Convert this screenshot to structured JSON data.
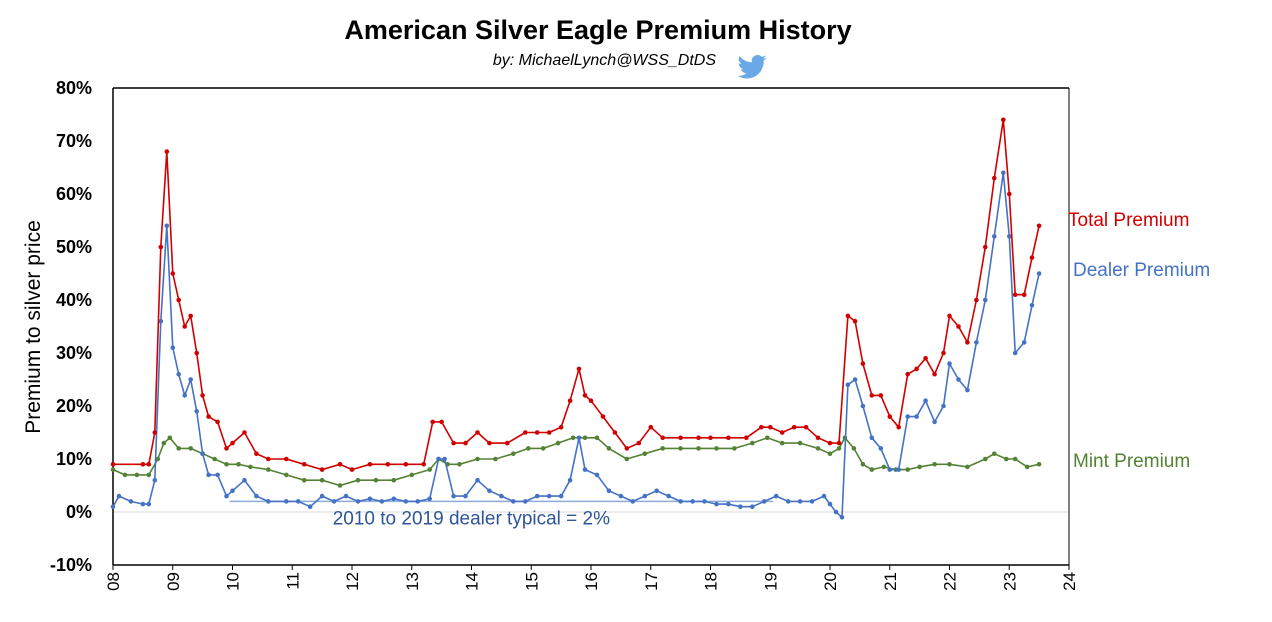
{
  "chart_data": {
    "type": "line",
    "title": "American Silver Eagle Premium History",
    "subtitle": "by: MichaelLynch@WSS_DtDS",
    "subtitle_icon": "twitter-bird-icon",
    "ylabel": "Premium to silver price",
    "xlabel": "",
    "xlim": [
      2008,
      2024
    ],
    "ylim": [
      -10,
      80
    ],
    "x_ticks": [
      "08",
      "09",
      "10",
      "11",
      "12",
      "13",
      "14",
      "15",
      "16",
      "17",
      "18",
      "19",
      "20",
      "21",
      "22",
      "23",
      "24"
    ],
    "y_ticks": [
      "80%",
      "70%",
      "60%",
      "50%",
      "40%",
      "30%",
      "20%",
      "10%",
      "0%",
      "-10%"
    ],
    "grid": "horizontal at 0%",
    "colors": {
      "total": "#d10000",
      "dealer": "#4472c4",
      "mint": "#548235",
      "annotation_line": "#8eaadb"
    },
    "series": [
      {
        "name": "Total Premium",
        "color": "#d10000",
        "points": [
          [
            2008.0,
            9
          ],
          [
            2008.5,
            9
          ],
          [
            2008.6,
            9
          ],
          [
            2008.7,
            15
          ],
          [
            2008.8,
            50
          ],
          [
            2008.9,
            68
          ],
          [
            2009.0,
            45
          ],
          [
            2009.1,
            40
          ],
          [
            2009.2,
            35
          ],
          [
            2009.3,
            37
          ],
          [
            2009.4,
            30
          ],
          [
            2009.5,
            22
          ],
          [
            2009.6,
            18
          ],
          [
            2009.75,
            17
          ],
          [
            2009.9,
            12
          ],
          [
            2010.0,
            13
          ],
          [
            2010.2,
            15
          ],
          [
            2010.4,
            11
          ],
          [
            2010.6,
            10
          ],
          [
            2010.9,
            10
          ],
          [
            2011.2,
            9
          ],
          [
            2011.5,
            8
          ],
          [
            2011.8,
            9
          ],
          [
            2012.0,
            8
          ],
          [
            2012.3,
            9
          ],
          [
            2012.6,
            9
          ],
          [
            2012.9,
            9
          ],
          [
            2013.2,
            9
          ],
          [
            2013.35,
            17
          ],
          [
            2013.5,
            17
          ],
          [
            2013.7,
            13
          ],
          [
            2013.9,
            13
          ],
          [
            2014.1,
            15
          ],
          [
            2014.3,
            13
          ],
          [
            2014.6,
            13
          ],
          [
            2014.9,
            15
          ],
          [
            2015.1,
            15
          ],
          [
            2015.3,
            15
          ],
          [
            2015.5,
            16
          ],
          [
            2015.65,
            21
          ],
          [
            2015.8,
            27
          ],
          [
            2015.9,
            22
          ],
          [
            2016.0,
            21
          ],
          [
            2016.2,
            18
          ],
          [
            2016.4,
            15
          ],
          [
            2016.6,
            12
          ],
          [
            2016.8,
            13
          ],
          [
            2017.0,
            16
          ],
          [
            2017.2,
            14
          ],
          [
            2017.5,
            14
          ],
          [
            2017.8,
            14
          ],
          [
            2018.0,
            14
          ],
          [
            2018.3,
            14
          ],
          [
            2018.6,
            14
          ],
          [
            2018.85,
            16
          ],
          [
            2019.0,
            16
          ],
          [
            2019.2,
            15
          ],
          [
            2019.4,
            16
          ],
          [
            2019.6,
            16
          ],
          [
            2019.8,
            14
          ],
          [
            2020.0,
            13
          ],
          [
            2020.15,
            13
          ],
          [
            2020.3,
            37
          ],
          [
            2020.42,
            36
          ],
          [
            2020.55,
            28
          ],
          [
            2020.7,
            22
          ],
          [
            2020.85,
            22
          ],
          [
            2021.0,
            18
          ],
          [
            2021.15,
            16
          ],
          [
            2021.3,
            26
          ],
          [
            2021.45,
            27
          ],
          [
            2021.6,
            29
          ],
          [
            2021.75,
            26
          ],
          [
            2021.9,
            30
          ],
          [
            2022.0,
            37
          ],
          [
            2022.15,
            35
          ],
          [
            2022.3,
            32
          ],
          [
            2022.45,
            40
          ],
          [
            2022.6,
            50
          ],
          [
            2022.75,
            63
          ],
          [
            2022.9,
            74
          ],
          [
            2023.0,
            60
          ],
          [
            2023.1,
            41
          ],
          [
            2023.25,
            41
          ],
          [
            2023.38,
            48
          ],
          [
            2023.5,
            54
          ]
        ]
      },
      {
        "name": "Dealer Premium",
        "color": "#4472c4",
        "points": [
          [
            2008.0,
            1
          ],
          [
            2008.1,
            3
          ],
          [
            2008.3,
            2
          ],
          [
            2008.5,
            1.5
          ],
          [
            2008.6,
            1.5
          ],
          [
            2008.7,
            6
          ],
          [
            2008.8,
            36
          ],
          [
            2008.9,
            54
          ],
          [
            2009.0,
            31
          ],
          [
            2009.1,
            26
          ],
          [
            2009.2,
            22
          ],
          [
            2009.3,
            25
          ],
          [
            2009.4,
            19
          ],
          [
            2009.5,
            11
          ],
          [
            2009.6,
            7
          ],
          [
            2009.75,
            7
          ],
          [
            2009.9,
            3
          ],
          [
            2010.0,
            4
          ],
          [
            2010.2,
            6
          ],
          [
            2010.4,
            3
          ],
          [
            2010.6,
            2
          ],
          [
            2010.9,
            2
          ],
          [
            2011.1,
            2
          ],
          [
            2011.3,
            1
          ],
          [
            2011.5,
            3
          ],
          [
            2011.7,
            2
          ],
          [
            2011.9,
            3
          ],
          [
            2012.1,
            2
          ],
          [
            2012.3,
            2.5
          ],
          [
            2012.5,
            2
          ],
          [
            2012.7,
            2.5
          ],
          [
            2012.9,
            2
          ],
          [
            2013.1,
            2
          ],
          [
            2013.3,
            2.5
          ],
          [
            2013.45,
            10
          ],
          [
            2013.55,
            10
          ],
          [
            2013.7,
            3
          ],
          [
            2013.9,
            3
          ],
          [
            2014.1,
            6
          ],
          [
            2014.3,
            4
          ],
          [
            2014.5,
            3
          ],
          [
            2014.7,
            2
          ],
          [
            2014.9,
            2
          ],
          [
            2015.1,
            3
          ],
          [
            2015.3,
            3
          ],
          [
            2015.5,
            3
          ],
          [
            2015.65,
            6
          ],
          [
            2015.8,
            14
          ],
          [
            2015.9,
            8
          ],
          [
            2016.1,
            7
          ],
          [
            2016.3,
            4
          ],
          [
            2016.5,
            3
          ],
          [
            2016.7,
            2
          ],
          [
            2016.9,
            3
          ],
          [
            2017.1,
            4
          ],
          [
            2017.3,
            3
          ],
          [
            2017.5,
            2
          ],
          [
            2017.7,
            2
          ],
          [
            2017.9,
            2
          ],
          [
            2018.1,
            1.5
          ],
          [
            2018.3,
            1.5
          ],
          [
            2018.5,
            1
          ],
          [
            2018.7,
            1
          ],
          [
            2018.9,
            2
          ],
          [
            2019.1,
            3
          ],
          [
            2019.3,
            2
          ],
          [
            2019.5,
            2
          ],
          [
            2019.7,
            2
          ],
          [
            2019.9,
            3
          ],
          [
            2020.0,
            1.5
          ],
          [
            2020.1,
            0
          ],
          [
            2020.2,
            -1
          ],
          [
            2020.3,
            24
          ],
          [
            2020.42,
            25
          ],
          [
            2020.55,
            20
          ],
          [
            2020.7,
            14
          ],
          [
            2020.85,
            12
          ],
          [
            2021.0,
            8
          ],
          [
            2021.15,
            8
          ],
          [
            2021.3,
            18
          ],
          [
            2021.45,
            18
          ],
          [
            2021.6,
            21
          ],
          [
            2021.75,
            17
          ],
          [
            2021.9,
            20
          ],
          [
            2022.0,
            28
          ],
          [
            2022.15,
            25
          ],
          [
            2022.3,
            23
          ],
          [
            2022.45,
            32
          ],
          [
            2022.6,
            40
          ],
          [
            2022.75,
            52
          ],
          [
            2022.9,
            64
          ],
          [
            2023.0,
            52
          ],
          [
            2023.1,
            30
          ],
          [
            2023.25,
            32
          ],
          [
            2023.38,
            39
          ],
          [
            2023.5,
            45
          ]
        ]
      },
      {
        "name": "Mint Premium",
        "color": "#548235",
        "points": [
          [
            2008.0,
            8
          ],
          [
            2008.2,
            7
          ],
          [
            2008.4,
            7
          ],
          [
            2008.6,
            7
          ],
          [
            2008.75,
            10
          ],
          [
            2008.85,
            13
          ],
          [
            2008.95,
            14
          ],
          [
            2009.1,
            12
          ],
          [
            2009.3,
            12
          ],
          [
            2009.5,
            11
          ],
          [
            2009.7,
            10
          ],
          [
            2009.9,
            9
          ],
          [
            2010.1,
            9
          ],
          [
            2010.3,
            8.5
          ],
          [
            2010.6,
            8
          ],
          [
            2010.9,
            7
          ],
          [
            2011.2,
            6
          ],
          [
            2011.5,
            6
          ],
          [
            2011.8,
            5
          ],
          [
            2012.1,
            6
          ],
          [
            2012.4,
            6
          ],
          [
            2012.7,
            6
          ],
          [
            2013.0,
            7
          ],
          [
            2013.3,
            8
          ],
          [
            2013.45,
            10
          ],
          [
            2013.6,
            9
          ],
          [
            2013.8,
            9
          ],
          [
            2014.1,
            10
          ],
          [
            2014.4,
            10
          ],
          [
            2014.7,
            11
          ],
          [
            2014.95,
            12
          ],
          [
            2015.2,
            12
          ],
          [
            2015.45,
            13
          ],
          [
            2015.7,
            14
          ],
          [
            2015.9,
            14
          ],
          [
            2016.1,
            14
          ],
          [
            2016.3,
            12
          ],
          [
            2016.6,
            10
          ],
          [
            2016.9,
            11
          ],
          [
            2017.2,
            12
          ],
          [
            2017.5,
            12
          ],
          [
            2017.8,
            12
          ],
          [
            2018.1,
            12
          ],
          [
            2018.4,
            12
          ],
          [
            2018.7,
            13
          ],
          [
            2018.95,
            14
          ],
          [
            2019.2,
            13
          ],
          [
            2019.5,
            13
          ],
          [
            2019.8,
            12
          ],
          [
            2020.0,
            11
          ],
          [
            2020.15,
            12
          ],
          [
            2020.25,
            14
          ],
          [
            2020.4,
            12
          ],
          [
            2020.55,
            9
          ],
          [
            2020.7,
            8
          ],
          [
            2020.9,
            8.5
          ],
          [
            2021.1,
            8
          ],
          [
            2021.3,
            8
          ],
          [
            2021.5,
            8.5
          ],
          [
            2021.75,
            9
          ],
          [
            2022.0,
            9
          ],
          [
            2022.3,
            8.5
          ],
          [
            2022.6,
            10
          ],
          [
            2022.75,
            11
          ],
          [
            2022.95,
            10
          ],
          [
            2023.1,
            10
          ],
          [
            2023.3,
            8.5
          ],
          [
            2023.5,
            9
          ]
        ]
      }
    ],
    "annotation": {
      "text": "2010 to 2019 dealer typical = 2%",
      "x_range": [
        2009.95,
        2019.05
      ],
      "y": 2
    }
  }
}
